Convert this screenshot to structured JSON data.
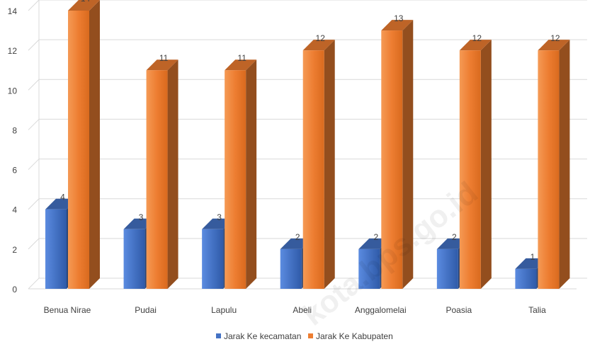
{
  "chart_data": {
    "type": "bar",
    "title": "",
    "xlabel": "",
    "ylabel": "",
    "categories": [
      "Benua Nirae",
      "Pudai",
      "Lapulu",
      "Abeli",
      "Anggalomelai",
      "Poasia",
      "Talia"
    ],
    "series": [
      {
        "name": "Jarak Ke kecamatan",
        "values": [
          4,
          3,
          3,
          2,
          2,
          2,
          1
        ],
        "color": "#4472c4"
      },
      {
        "name": "Jarak Ke Kabupaten",
        "values": [
          14,
          11,
          11,
          12,
          13,
          12,
          12
        ],
        "color": "#ed7d31"
      }
    ],
    "ylim": [
      0,
      14
    ],
    "yticks": [
      "0",
      "2",
      "4",
      "6",
      "8",
      "10",
      "12",
      "14"
    ],
    "grid": true,
    "legend_position": "bottom"
  },
  "watermark": "kota.bps.go.id"
}
